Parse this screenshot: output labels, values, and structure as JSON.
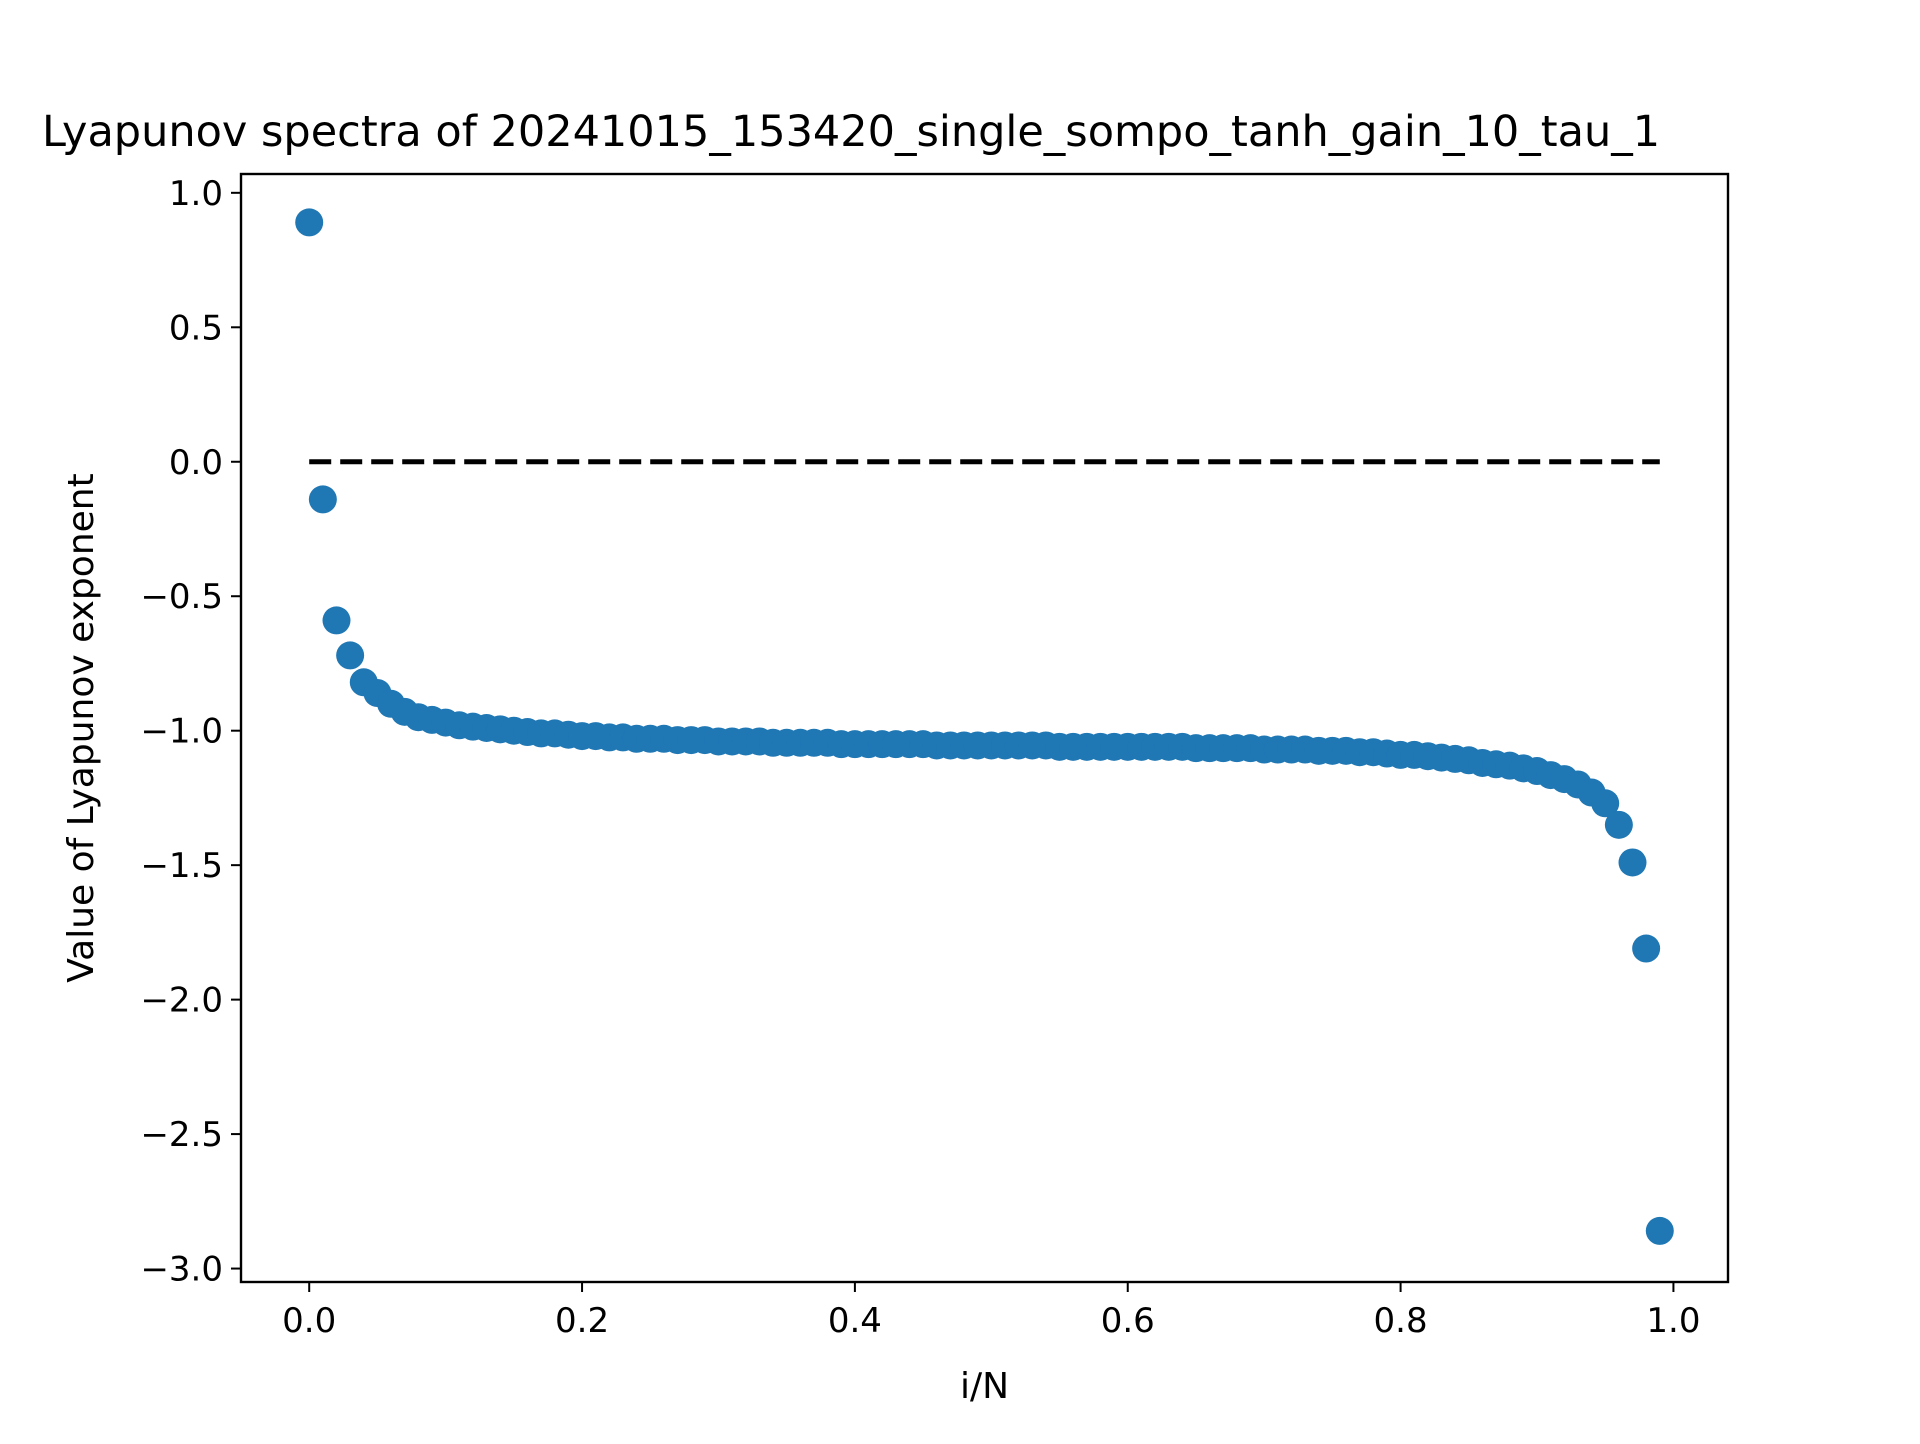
{
  "chart_data": {
    "type": "scatter",
    "title": "Lyapunov spectra of 20241015_153420_single_sompo_tanh_gain_10_tau_1",
    "xlabel": "i/N",
    "ylabel": "Value of Lyapunov exponent",
    "xlim": [
      -0.05,
      1.04
    ],
    "ylim": [
      -3.05,
      1.07
    ],
    "xticks": [
      0.0,
      0.2,
      0.4,
      0.6,
      0.8,
      1.0
    ],
    "xtick_labels": [
      "0.0",
      "0.2",
      "0.4",
      "0.6",
      "0.8",
      "1.0"
    ],
    "yticks": [
      1.0,
      0.5,
      0.0,
      -0.5,
      -1.0,
      -1.5,
      -2.0,
      -2.5,
      -3.0
    ],
    "ytick_labels": [
      "1.0",
      "0.5",
      "0.0",
      "−0.5",
      "−1.0",
      "−1.5",
      "−2.0",
      "−2.5",
      "−3.0"
    ],
    "grid": false,
    "colors": {
      "points": "#1f77b4",
      "reference_line": "#000000"
    },
    "reference_line": {
      "y": 0.0,
      "x_start": 0.0,
      "x_end": 0.99,
      "style": "dashed"
    },
    "series": [
      {
        "x": [
          0.0,
          0.01,
          0.02,
          0.03,
          0.04,
          0.05,
          0.06,
          0.07,
          0.08,
          0.09,
          0.1,
          0.11,
          0.12,
          0.13,
          0.14,
          0.15,
          0.16,
          0.17,
          0.18,
          0.19,
          0.2,
          0.21,
          0.22,
          0.23,
          0.24,
          0.25,
          0.26,
          0.27,
          0.28,
          0.29,
          0.3,
          0.31,
          0.32,
          0.33,
          0.34,
          0.35,
          0.36,
          0.37,
          0.38,
          0.39,
          0.4,
          0.41,
          0.42,
          0.43,
          0.44,
          0.45,
          0.46,
          0.47,
          0.48,
          0.49,
          0.5,
          0.51,
          0.52,
          0.53,
          0.54,
          0.55,
          0.56,
          0.57,
          0.58,
          0.59,
          0.6,
          0.61,
          0.62,
          0.63,
          0.64,
          0.65,
          0.66,
          0.67,
          0.68,
          0.69,
          0.7,
          0.71,
          0.72,
          0.73,
          0.74,
          0.75,
          0.76,
          0.77,
          0.78,
          0.79,
          0.8,
          0.81,
          0.82,
          0.83,
          0.84,
          0.85,
          0.86,
          0.87,
          0.88,
          0.89,
          0.9,
          0.91,
          0.92,
          0.93,
          0.94,
          0.95,
          0.96,
          0.97,
          0.98,
          0.99
        ],
        "y": [
          0.89,
          -0.14,
          -0.59,
          -0.72,
          -0.82,
          -0.86,
          -0.9,
          -0.93,
          -0.95,
          -0.96,
          -0.97,
          -0.98,
          -0.985,
          -0.99,
          -0.995,
          -1.0,
          -1.005,
          -1.01,
          -1.01,
          -1.015,
          -1.02,
          -1.02,
          -1.025,
          -1.025,
          -1.03,
          -1.03,
          -1.03,
          -1.035,
          -1.035,
          -1.035,
          -1.04,
          -1.04,
          -1.04,
          -1.04,
          -1.045,
          -1.045,
          -1.045,
          -1.045,
          -1.045,
          -1.05,
          -1.05,
          -1.05,
          -1.05,
          -1.05,
          -1.05,
          -1.05,
          -1.055,
          -1.055,
          -1.055,
          -1.055,
          -1.055,
          -1.055,
          -1.055,
          -1.055,
          -1.055,
          -1.06,
          -1.06,
          -1.06,
          -1.06,
          -1.06,
          -1.06,
          -1.06,
          -1.06,
          -1.06,
          -1.06,
          -1.065,
          -1.065,
          -1.065,
          -1.065,
          -1.065,
          -1.07,
          -1.07,
          -1.07,
          -1.07,
          -1.075,
          -1.075,
          -1.075,
          -1.08,
          -1.08,
          -1.085,
          -1.09,
          -1.09,
          -1.095,
          -1.1,
          -1.105,
          -1.11,
          -1.12,
          -1.125,
          -1.13,
          -1.14,
          -1.15,
          -1.165,
          -1.18,
          -1.2,
          -1.23,
          -1.27,
          -1.35,
          -1.49,
          -1.81,
          -2.86
        ]
      }
    ]
  }
}
